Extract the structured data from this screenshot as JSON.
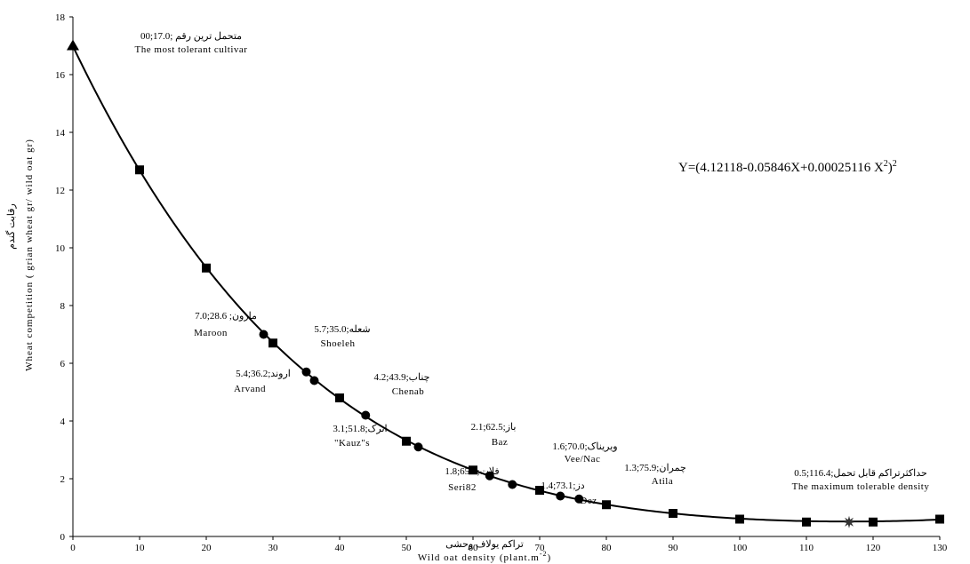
{
  "chart_data": {
    "type": "scatter",
    "xlabel_fa": "تراکم یولاف وحشی",
    "xlabel": "Wild oat density (plant.m",
    "xlabel_sup": "-2",
    "xlabel_end": ")",
    "ylabel_fa": "رقابت گندم",
    "ylabel": "Wheat competition ( grian wheat gr/ wild oat gr)",
    "xlim": [
      0,
      130
    ],
    "ylim": [
      0,
      18
    ],
    "xticks": [
      "0",
      "10",
      "20",
      "30",
      "40",
      "50",
      "60",
      "70",
      "80",
      "90",
      "100",
      "110",
      "120",
      "130"
    ],
    "yticks": [
      "0",
      "2",
      "4",
      "6",
      "8",
      "10",
      "12",
      "14",
      "16",
      "18"
    ],
    "equation": {
      "prefix": "Y=(4.12118-0.05846X+0.00025116 X",
      "sup1": "2",
      "close": ")",
      "sup2": "2"
    },
    "curve_coefficients": {
      "a": 4.12118,
      "b": -0.05846,
      "c": 0.00025116
    },
    "series": [
      {
        "marker": "square",
        "x": [
          10,
          20,
          30,
          40,
          50,
          60,
          70,
          80,
          90,
          100,
          110,
          120,
          130
        ],
        "y": [
          12.7,
          9.3,
          6.7,
          4.8,
          3.3,
          2.3,
          1.6,
          1.1,
          0.8,
          0.6,
          0.5,
          0.5,
          0.6
        ]
      },
      {
        "marker": "circle",
        "x": [
          28.6,
          35.0,
          36.2,
          43.9,
          51.8,
          62.5,
          65.9,
          73.1,
          75.9
        ],
        "y": [
          7.0,
          5.7,
          5.4,
          4.2,
          3.1,
          2.1,
          1.8,
          1.4,
          1.3
        ]
      },
      {
        "marker": "triangle",
        "x": [
          0
        ],
        "y": [
          17.0
        ]
      },
      {
        "marker": "star",
        "x": [
          116.4
        ],
        "y": [
          0.5
        ]
      }
    ],
    "annotations": [
      {
        "id": "a0",
        "text": "متحمل ترین رقم ;17.0;00"
      },
      {
        "id": "a1",
        "text": "The most tolerant cultivar"
      },
      {
        "id": "a2",
        "text": "7.0;28.6 ;مارون"
      },
      {
        "id": "a3",
        "text": "Maroon"
      },
      {
        "id": "a4",
        "text": "5.7;35.0;شعله"
      },
      {
        "id": "a5",
        "text": "Shoeleh"
      },
      {
        "id": "a6",
        "text": "5.4;36.2;اروند"
      },
      {
        "id": "a7",
        "text": "Arvand"
      },
      {
        "id": "a8",
        "text": "4.2;43.9;چناب"
      },
      {
        "id": "a9",
        "text": "Chenab"
      },
      {
        "id": "a10",
        "text": "3.1;51.8;اترک"
      },
      {
        "id": "a11",
        "text": "\"Kauz\"s"
      },
      {
        "id": "a12",
        "text": "2.1;62.5;باز"
      },
      {
        "id": "a13",
        "text": "Baz"
      },
      {
        "id": "a14",
        "text": "1.8;65.9;فلات"
      },
      {
        "id": "a15",
        "text": "Seri82"
      },
      {
        "id": "a16",
        "text": "1.6;70.0;ویریناک"
      },
      {
        "id": "a17",
        "text": "Vee/Nac"
      },
      {
        "id": "a18",
        "text": "1.4;73.1;دز"
      },
      {
        "id": "a19",
        "text": "Dez"
      },
      {
        "id": "a20",
        "text": "1.3;75.9;چمران"
      },
      {
        "id": "a21",
        "text": "Atila"
      },
      {
        "id": "a22",
        "text": "0.5;116.4;حداکثرتراکم قابل تحمل"
      },
      {
        "id": "a23",
        "text": "The maximum tolerable density"
      }
    ]
  }
}
